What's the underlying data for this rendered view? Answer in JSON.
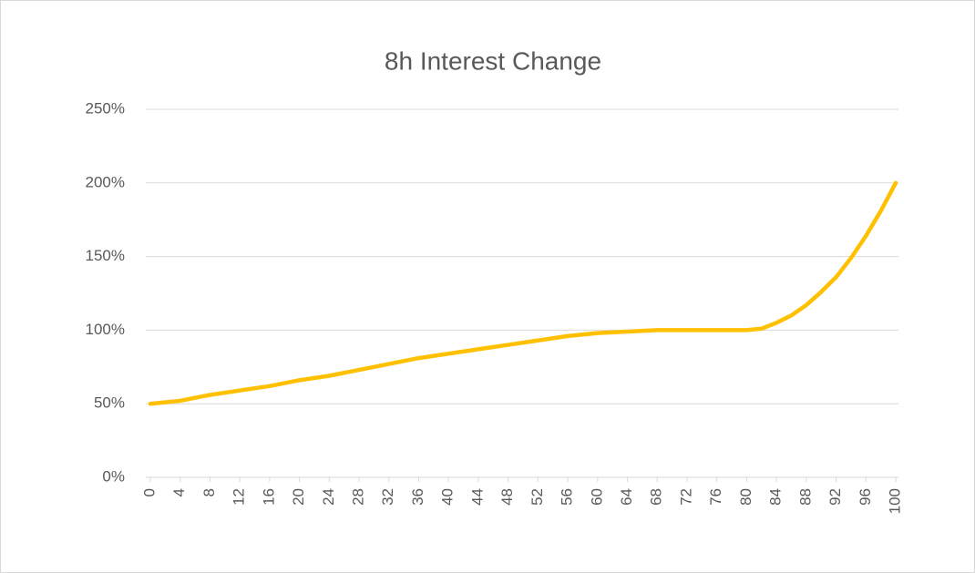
{
  "chart_data": {
    "type": "line",
    "title": "8h Interest Change",
    "x": [
      0,
      4,
      8,
      12,
      16,
      20,
      24,
      28,
      32,
      36,
      40,
      44,
      48,
      52,
      56,
      60,
      64,
      68,
      72,
      76,
      80,
      82,
      84,
      86,
      88,
      90,
      92,
      94,
      96,
      98,
      100
    ],
    "series": [
      {
        "name": "8h Interest Change",
        "color": "#ffc000",
        "values": [
          50,
          52,
          56,
          59,
          62,
          66,
          69,
          73,
          77,
          81,
          84,
          87,
          90,
          93,
          96,
          98,
          99,
          100,
          100,
          100,
          100,
          101,
          105,
          110,
          117,
          126,
          136,
          149,
          164,
          181,
          200
        ]
      }
    ],
    "xlim": [
      0,
      100
    ],
    "xticks": [
      0,
      4,
      8,
      12,
      16,
      20,
      24,
      28,
      32,
      36,
      40,
      44,
      48,
      52,
      56,
      60,
      64,
      68,
      72,
      76,
      80,
      84,
      88,
      92,
      96,
      100
    ],
    "ylim": [
      0,
      250
    ],
    "yticks": [
      {
        "value": 0,
        "label": "0%"
      },
      {
        "value": 50,
        "label": "50%"
      },
      {
        "value": 100,
        "label": "100%"
      },
      {
        "value": 150,
        "label": "150%"
      },
      {
        "value": 200,
        "label": "200%"
      },
      {
        "value": 250,
        "label": "250%"
      }
    ],
    "grid": true
  }
}
